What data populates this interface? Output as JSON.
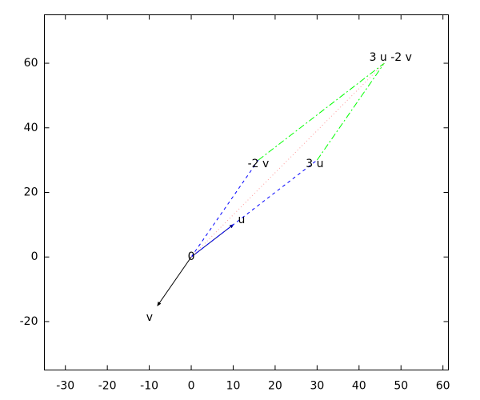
{
  "chart_data": {
    "type": "vector",
    "points": [
      {
        "label": "0",
        "x": 0,
        "y": 0
      },
      {
        "label": "u",
        "x": 10,
        "y": 10
      },
      {
        "label": "v",
        "x": -8,
        "y": -15
      },
      {
        "label": "-2 v",
        "x": 16,
        "y": 30
      },
      {
        "label": "3 u",
        "x": 30,
        "y": 30
      },
      {
        "label": "3 u -2 v",
        "x": 46,
        "y": 60
      }
    ],
    "segments": [
      {
        "from": 0,
        "to": 1,
        "color": "#000080",
        "dash": "solid",
        "arrow": true
      },
      {
        "from": 0,
        "to": 2,
        "color": "#000000",
        "dash": "solid",
        "arrow": true
      },
      {
        "from": 0,
        "to": 3,
        "color": "#0000ff",
        "dash": "dashed",
        "arrow": false
      },
      {
        "from": 0,
        "to": 4,
        "color": "#0000ff",
        "dash": "dashed",
        "arrow": false
      },
      {
        "from": 3,
        "to": 5,
        "color": "#00ff00",
        "dash": "dashdot",
        "arrow": false
      },
      {
        "from": 4,
        "to": 5,
        "color": "#00ff00",
        "dash": "dashdot",
        "arrow": false
      },
      {
        "from": 0,
        "to": 5,
        "color": "#ff9999",
        "dash": "dotted",
        "arrow": false
      }
    ],
    "xlim": [
      -35,
      61.3
    ],
    "ylim": [
      -35,
      75
    ],
    "xticks": [
      -30,
      -20,
      -10,
      0,
      10,
      20,
      30,
      40,
      50,
      60
    ],
    "yticks": [
      -20,
      0,
      20,
      40,
      60
    ]
  }
}
